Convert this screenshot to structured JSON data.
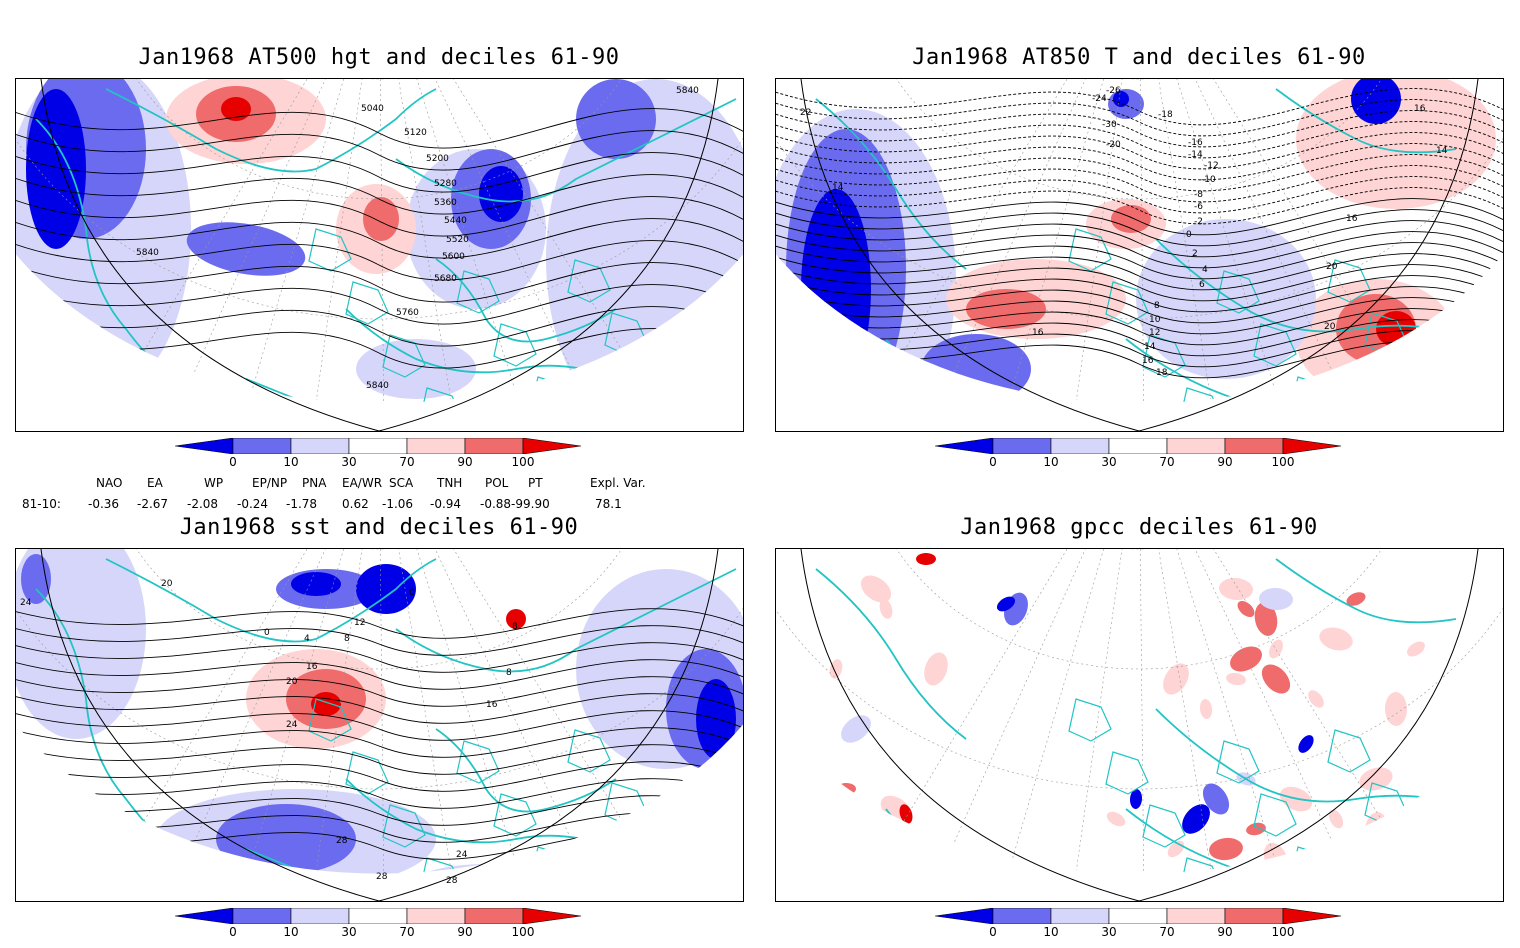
{
  "panels": [
    {
      "title": "Jan1968 AT500 hgt and deciles 61-90",
      "contour_labels": [
        "5040",
        "5120",
        "5200",
        "5280",
        "5360",
        "5440",
        "5520",
        "5600",
        "5680",
        "5760",
        "5840",
        "5840",
        "5840"
      ]
    },
    {
      "title": "Jan1968 AT850 T and deciles 61-90",
      "contour_labels": [
        "-26",
        "-24",
        "-18",
        "-30",
        "-20",
        "-16",
        "-14",
        "-12",
        "-10",
        "-8",
        "-6",
        "-2",
        "0",
        "2",
        "4",
        "6",
        "8",
        "10",
        "12",
        "14",
        "16",
        "18",
        "20",
        "22",
        "14",
        "16",
        "16",
        "14",
        "16",
        "20"
      ]
    },
    {
      "title": "Jan1968 sst and deciles 61-90",
      "contour_labels": [
        "24",
        "20",
        "0",
        "4",
        "8",
        "12",
        "16",
        "20",
        "24",
        "28",
        "28",
        "24",
        "28",
        "16",
        "8",
        "0",
        "8"
      ]
    },
    {
      "title": "Jan1968 gpcc deciles 61-90",
      "contour_labels": []
    }
  ],
  "colorbar": {
    "ticks": [
      "0",
      "10",
      "30",
      "70",
      "90",
      "100"
    ],
    "colors": [
      "#0000e6",
      "#6b6bf0",
      "#d6d6fa",
      "#ffffff",
      "#ffd4d4",
      "#f06b6b",
      "#e60000"
    ]
  },
  "indices": {
    "headers": [
      "NAO",
      "EA",
      "WP",
      "EP/NP",
      "PNA",
      "EA/WR",
      "SCA",
      "TNH",
      "POL",
      "PT",
      "Expl. Var."
    ],
    "row_label": "81-10:",
    "values": [
      "-0.36",
      "-2.67",
      "-2.08",
      "-0.24",
      "-1.78",
      "0.62",
      "-1.06",
      "-0.94",
      "-0.88-99.90",
      "",
      "78.1"
    ]
  },
  "style": {
    "coast": "#22c4c4",
    "deep_blue": "#0000e6",
    "mid_blue": "#6b6bf0",
    "light_blue": "#d6d6fa",
    "light_red": "#ffd4d4",
    "mid_red": "#f06b6b",
    "deep_red": "#e60000"
  }
}
